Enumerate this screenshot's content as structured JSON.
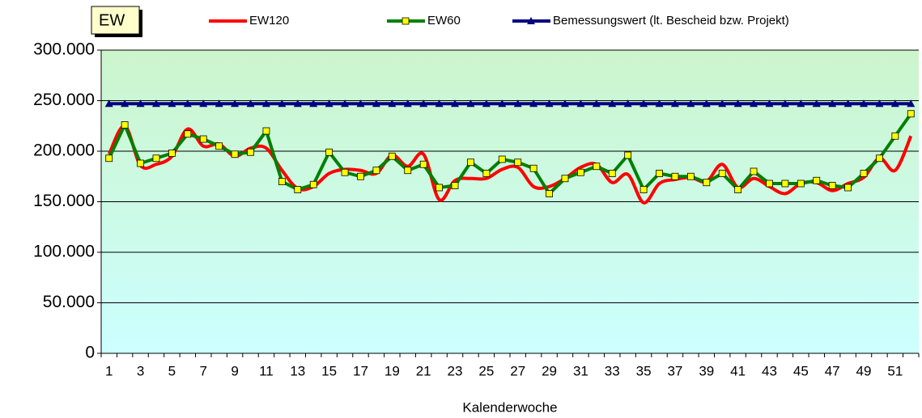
{
  "chart_data": {
    "type": "line",
    "ylabel": "EW",
    "xlabel": "Kalenderwoche",
    "categories": [
      "1",
      null,
      "3",
      null,
      "5",
      null,
      "7",
      null,
      "9",
      null,
      "11",
      null,
      "13",
      null,
      "15",
      null,
      "17",
      null,
      "19",
      null,
      "21",
      null,
      "23",
      null,
      "25",
      null,
      "27",
      null,
      "29",
      null,
      "31",
      null,
      "33",
      null,
      "35",
      null,
      "37",
      null,
      "39",
      null,
      "41",
      null,
      "43",
      null,
      "45",
      null,
      "47",
      null,
      "49",
      null,
      "51",
      null
    ],
    "series": [
      {
        "name": "EW120",
        "color": "#ff0000",
        "smooth": true,
        "values": [
          197000,
          225000,
          186000,
          187000,
          195000,
          222000,
          205000,
          207000,
          195000,
          203000,
          203000,
          181000,
          163000,
          165000,
          178000,
          182000,
          181000,
          178000,
          196000,
          185000,
          197000,
          152000,
          171000,
          173000,
          173000,
          182000,
          184000,
          165000,
          165000,
          173000,
          184000,
          187000,
          169000,
          177000,
          149000,
          168000,
          172000,
          174000,
          170000,
          187000,
          164000,
          173000,
          165000,
          158000,
          168000,
          169000,
          161000,
          168000,
          174000,
          193000,
          181000,
          215000
        ]
      },
      {
        "name": "EW60",
        "color": "#008000",
        "marker": "square",
        "marker_color": "#ffff00",
        "values": [
          193000,
          226000,
          188000,
          193000,
          198000,
          217000,
          212000,
          205000,
          197000,
          199000,
          220000,
          170000,
          162000,
          167000,
          199000,
          179000,
          175000,
          181000,
          195000,
          181000,
          187000,
          164000,
          166000,
          189000,
          178000,
          192000,
          189000,
          183000,
          158000,
          173000,
          179000,
          185000,
          178000,
          196000,
          162000,
          178000,
          175000,
          175000,
          169000,
          178000,
          162000,
          180000,
          168000,
          168000,
          168000,
          171000,
          166000,
          164000,
          178000,
          193000,
          215000,
          237000
        ]
      },
      {
        "name": "Bemessungswert (lt. Bescheid bzw. Projekt)",
        "color": "#000080",
        "marker": "triangle",
        "marker_color": "#000080",
        "values": [
          247000,
          247000,
          247000,
          247000,
          247000,
          247000,
          247000,
          247000,
          247000,
          247000,
          247000,
          247000,
          247000,
          247000,
          247000,
          247000,
          247000,
          247000,
          247000,
          247000,
          247000,
          247000,
          247000,
          247000,
          247000,
          247000,
          247000,
          247000,
          247000,
          247000,
          247000,
          247000,
          247000,
          247000,
          247000,
          247000,
          247000,
          247000,
          247000,
          247000,
          247000,
          247000,
          247000,
          247000,
          247000,
          247000,
          247000,
          247000,
          247000,
          247000,
          247000,
          247000
        ]
      }
    ],
    "ylim": [
      0,
      300000
    ],
    "yticks": [
      0,
      {
        "value": 50000,
        "label": "50.000"
      },
      {
        "value": 100000,
        "label": "100.000"
      },
      {
        "value": 150000,
        "label": "150.000"
      },
      {
        "value": 200000,
        "label": "200.000"
      },
      {
        "value": 250000,
        "label": "250.000"
      },
      {
        "value": 300000,
        "label": "300.000"
      }
    ],
    "grid": true,
    "legend": "top"
  }
}
